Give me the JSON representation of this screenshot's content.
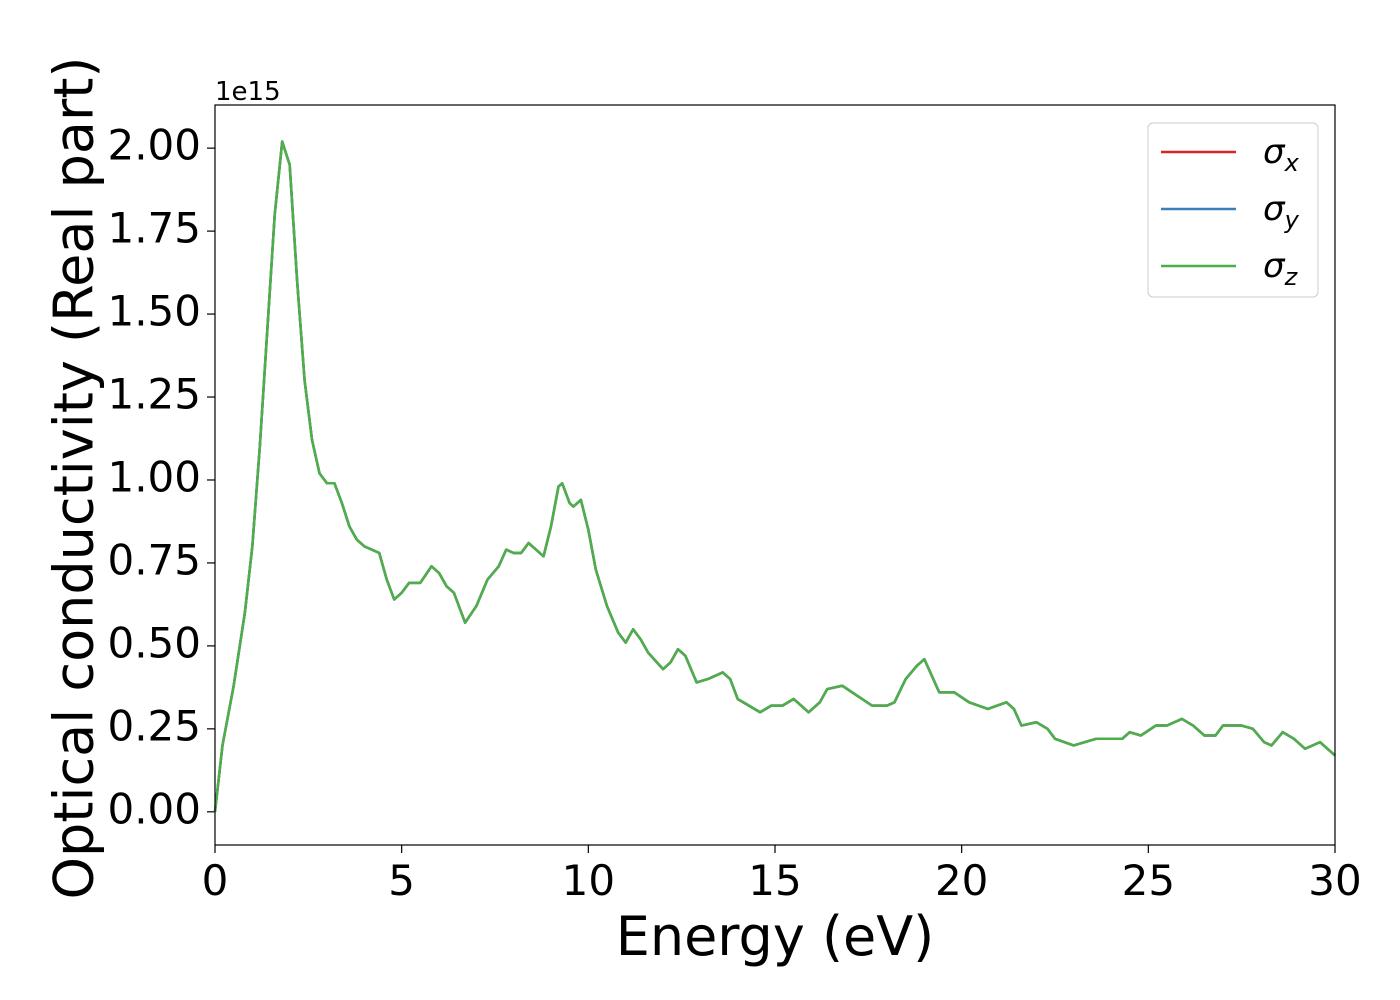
{
  "chart_data": {
    "type": "line",
    "xlabel": "Energy (eV)",
    "ylabel": "Optical conductivity (Real part)",
    "y_offset_label": "1e15",
    "xlim": [
      0,
      30
    ],
    "ylim": [
      -0.1,
      2.13
    ],
    "xticks": [
      0,
      5,
      10,
      15,
      20,
      25,
      30
    ],
    "yticks": [
      {
        "value": 0,
        "label": "0.00"
      },
      {
        "value": 0.25,
        "label": "0.25"
      },
      {
        "value": 0.5,
        "label": "0.50"
      },
      {
        "value": 0.75,
        "label": "0.75"
      },
      {
        "value": 1,
        "label": "1.00"
      },
      {
        "value": 1.25,
        "label": "1.25"
      },
      {
        "value": 1.5,
        "label": "1.50"
      },
      {
        "value": 1.75,
        "label": "1.75"
      },
      {
        "value": 2,
        "label": "2.00"
      }
    ],
    "legend": "upper right",
    "x": [
      0,
      0.2,
      0.5,
      0.8,
      1.0,
      1.2,
      1.4,
      1.6,
      1.8,
      2.0,
      2.2,
      2.4,
      2.6,
      2.8,
      3.0,
      3.2,
      3.4,
      3.6,
      3.8,
      4.0,
      4.2,
      4.4,
      4.6,
      4.8,
      5.0,
      5.2,
      5.5,
      5.8,
      6.0,
      6.2,
      6.4,
      6.7,
      7.0,
      7.3,
      7.6,
      7.8,
      8.0,
      8.2,
      8.4,
      8.6,
      8.8,
      9.0,
      9.2,
      9.3,
      9.5,
      9.6,
      9.8,
      10.0,
      10.2,
      10.5,
      10.8,
      11.0,
      11.2,
      11.4,
      11.6,
      12.0,
      12.2,
      12.4,
      12.6,
      12.9,
      13.2,
      13.6,
      13.8,
      14.0,
      14.3,
      14.6,
      14.9,
      15.2,
      15.5,
      15.9,
      16.2,
      16.4,
      16.8,
      17.2,
      17.6,
      18.0,
      18.2,
      18.5,
      18.8,
      19.0,
      19.2,
      19.4,
      19.8,
      20.2,
      20.7,
      21.2,
      21.4,
      21.6,
      22.0,
      22.3,
      22.5,
      23.0,
      23.6,
      24.0,
      24.3,
      24.5,
      24.8,
      25.2,
      25.5,
      25.9,
      26.2,
      26.5,
      26.8,
      27.0,
      27.5,
      27.8,
      28.1,
      28.3,
      28.6,
      28.9,
      29.2,
      29.6,
      30.0
    ],
    "series": [
      {
        "name": "σx",
        "color": "#d62728",
        "values": [
          0,
          0.2,
          0.38,
          0.6,
          0.8,
          1.1,
          1.45,
          1.8,
          2.02,
          1.95,
          1.6,
          1.3,
          1.12,
          1.02,
          0.99,
          0.99,
          0.93,
          0.86,
          0.82,
          0.8,
          0.79,
          0.78,
          0.7,
          0.64,
          0.66,
          0.69,
          0.69,
          0.74,
          0.72,
          0.68,
          0.66,
          0.57,
          0.62,
          0.7,
          0.74,
          0.79,
          0.78,
          0.78,
          0.81,
          0.79,
          0.77,
          0.86,
          0.98,
          0.99,
          0.93,
          0.92,
          0.94,
          0.85,
          0.73,
          0.62,
          0.54,
          0.51,
          0.55,
          0.52,
          0.48,
          0.43,
          0.45,
          0.49,
          0.47,
          0.39,
          0.4,
          0.42,
          0.4,
          0.34,
          0.32,
          0.3,
          0.32,
          0.32,
          0.34,
          0.3,
          0.33,
          0.37,
          0.38,
          0.35,
          0.32,
          0.32,
          0.33,
          0.4,
          0.44,
          0.46,
          0.41,
          0.36,
          0.36,
          0.33,
          0.31,
          0.33,
          0.31,
          0.26,
          0.27,
          0.25,
          0.22,
          0.2,
          0.22,
          0.22,
          0.22,
          0.24,
          0.23,
          0.26,
          0.26,
          0.28,
          0.26,
          0.23,
          0.23,
          0.26,
          0.26,
          0.25,
          0.21,
          0.2,
          0.24,
          0.22,
          0.19,
          0.21,
          0.17
        ]
      },
      {
        "name": "σy",
        "color": "#3b7fb8",
        "values": [
          0,
          0.2,
          0.38,
          0.6,
          0.8,
          1.1,
          1.45,
          1.8,
          2.02,
          1.95,
          1.6,
          1.3,
          1.12,
          1.02,
          0.99,
          0.99,
          0.93,
          0.86,
          0.82,
          0.8,
          0.79,
          0.78,
          0.7,
          0.64,
          0.66,
          0.69,
          0.69,
          0.74,
          0.72,
          0.68,
          0.66,
          0.57,
          0.62,
          0.7,
          0.74,
          0.79,
          0.78,
          0.78,
          0.81,
          0.79,
          0.77,
          0.86,
          0.98,
          0.99,
          0.93,
          0.92,
          0.94,
          0.85,
          0.73,
          0.62,
          0.54,
          0.51,
          0.55,
          0.52,
          0.48,
          0.43,
          0.45,
          0.49,
          0.47,
          0.39,
          0.4,
          0.42,
          0.4,
          0.34,
          0.32,
          0.3,
          0.32,
          0.32,
          0.34,
          0.3,
          0.33,
          0.37,
          0.38,
          0.35,
          0.32,
          0.32,
          0.33,
          0.4,
          0.44,
          0.46,
          0.41,
          0.36,
          0.36,
          0.33,
          0.31,
          0.33,
          0.31,
          0.26,
          0.27,
          0.25,
          0.22,
          0.2,
          0.22,
          0.22,
          0.22,
          0.24,
          0.23,
          0.26,
          0.26,
          0.28,
          0.26,
          0.23,
          0.23,
          0.26,
          0.26,
          0.25,
          0.21,
          0.2,
          0.24,
          0.22,
          0.19,
          0.21,
          0.17
        ]
      },
      {
        "name": "σz",
        "color": "#4daf4a",
        "values": [
          0,
          0.2,
          0.38,
          0.6,
          0.8,
          1.1,
          1.45,
          1.8,
          2.02,
          1.95,
          1.6,
          1.3,
          1.12,
          1.02,
          0.99,
          0.99,
          0.93,
          0.86,
          0.82,
          0.8,
          0.79,
          0.78,
          0.7,
          0.64,
          0.66,
          0.69,
          0.69,
          0.74,
          0.72,
          0.68,
          0.66,
          0.57,
          0.62,
          0.7,
          0.74,
          0.79,
          0.78,
          0.78,
          0.81,
          0.79,
          0.77,
          0.86,
          0.98,
          0.99,
          0.93,
          0.92,
          0.94,
          0.85,
          0.73,
          0.62,
          0.54,
          0.51,
          0.55,
          0.52,
          0.48,
          0.43,
          0.45,
          0.49,
          0.47,
          0.39,
          0.4,
          0.42,
          0.4,
          0.34,
          0.32,
          0.3,
          0.32,
          0.32,
          0.34,
          0.3,
          0.33,
          0.37,
          0.38,
          0.35,
          0.32,
          0.32,
          0.33,
          0.4,
          0.44,
          0.46,
          0.41,
          0.36,
          0.36,
          0.33,
          0.31,
          0.33,
          0.31,
          0.26,
          0.27,
          0.25,
          0.22,
          0.2,
          0.22,
          0.22,
          0.22,
          0.24,
          0.23,
          0.26,
          0.26,
          0.28,
          0.26,
          0.23,
          0.23,
          0.26,
          0.26,
          0.25,
          0.21,
          0.2,
          0.24,
          0.22,
          0.19,
          0.21,
          0.17
        ]
      }
    ]
  }
}
